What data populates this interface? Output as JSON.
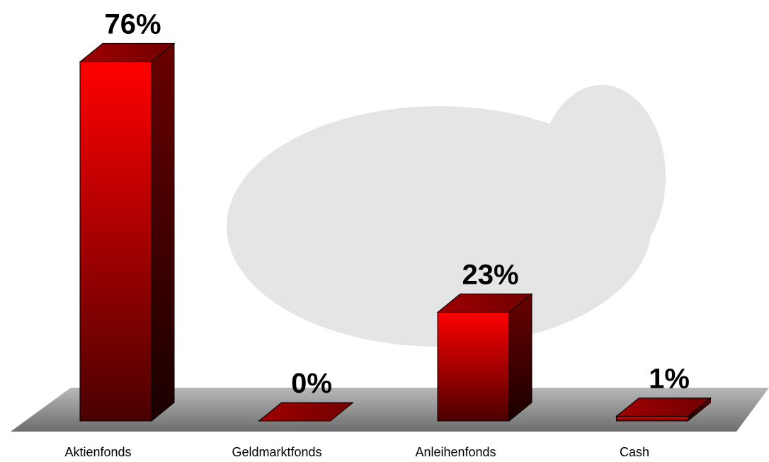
{
  "chart_data": {
    "type": "bar3d",
    "categories": [
      "Aktienfonds",
      "Geldmarktfonds",
      "Anleihenfonds",
      "Cash"
    ],
    "values": [
      76,
      0,
      23,
      1
    ],
    "value_labels": [
      "76%",
      "0%",
      "23%",
      "1%"
    ],
    "color": "#ff0000"
  }
}
